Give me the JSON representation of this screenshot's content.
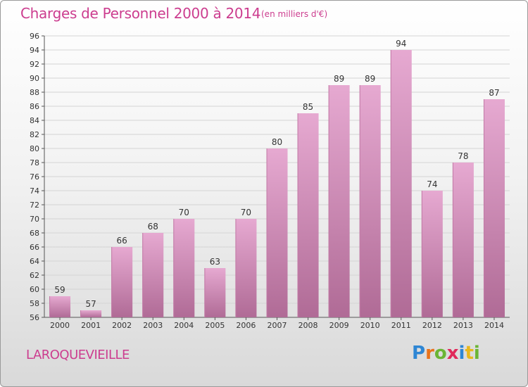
{
  "header": {
    "title": "Charges de Personnel 2000 à 2014",
    "subtitle": "(en milliers d'€)"
  },
  "footer": {
    "commune": "LAROQUEVIEILLE",
    "logo": "Proxiti"
  },
  "colors": {
    "accent": "#cc3d8f",
    "bar_top": "#e6a9d1",
    "bar_bottom": "#b06b96",
    "logo_letters": [
      "#2e86d4",
      "#e8731c",
      "#6bb535",
      "#e02a5a",
      "#2e86d4",
      "#e8b81c",
      "#6bb535"
    ]
  },
  "chart_data": {
    "type": "bar",
    "categories": [
      "2000",
      "2001",
      "2002",
      "2003",
      "2004",
      "2005",
      "2006",
      "2007",
      "2008",
      "2009",
      "2010",
      "2011",
      "2012",
      "2013",
      "2014"
    ],
    "values": [
      59,
      57,
      66,
      68,
      70,
      63,
      70,
      80,
      85,
      89,
      89,
      94,
      74,
      78,
      87
    ],
    "ylim": [
      56,
      96
    ],
    "yticks": [
      56,
      58,
      60,
      62,
      64,
      66,
      68,
      70,
      72,
      74,
      76,
      78,
      80,
      82,
      84,
      86,
      88,
      90,
      92,
      94,
      96
    ],
    "grid": true,
    "xlabel": "",
    "ylabel": ""
  }
}
